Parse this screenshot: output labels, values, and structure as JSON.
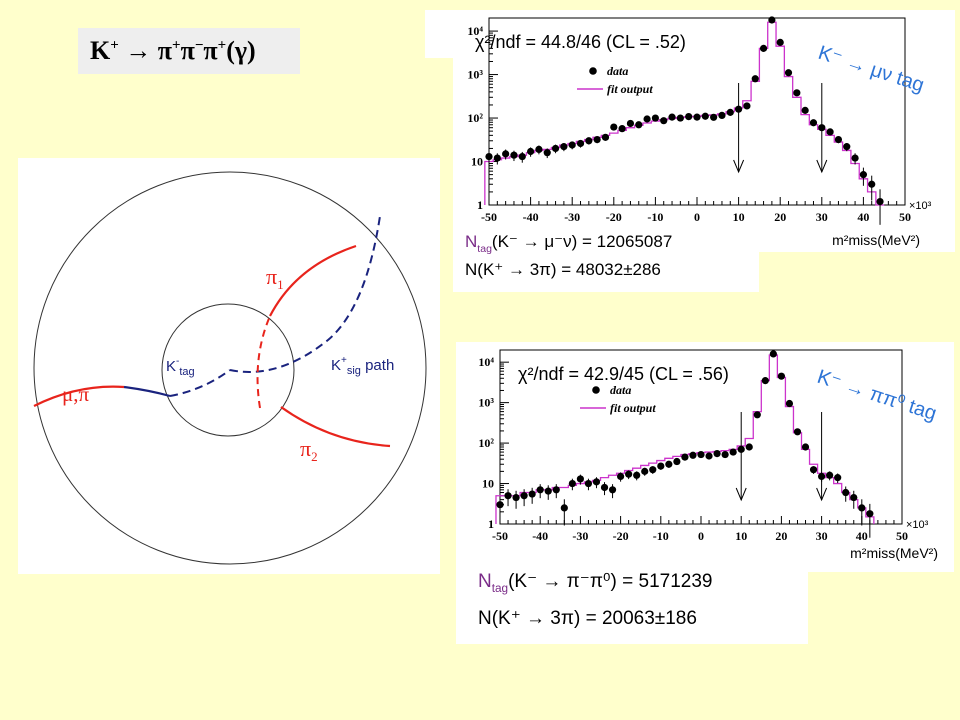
{
  "title": {
    "base": "K",
    "sup1": "+",
    "arrow": "→",
    "pi1": "π",
    "sup2": "+",
    "pi2": "π",
    "sup3": "−",
    "pi3": "π",
    "sup4": "+",
    "tail": "(γ)"
  },
  "diagram": {
    "mu_pi": "μ,π",
    "pi1": "π",
    "pi1_sub": "1",
    "pi2": "π",
    "pi2_sub": "2",
    "ktag": "K",
    "ktag_sup": "-",
    "ktag_sub": "tag",
    "ksig": "K",
    "ksig_sup": "+",
    "ksig_sub": "sig",
    "ksig_path": " path"
  },
  "colors": {
    "background": "#ffffcc",
    "red": "#e8241c",
    "blue": "#1a237e",
    "magenta": "#cc33cc",
    "label_blue": "#2d74d6",
    "label_purple": "#7a2c88"
  },
  "chart_data": [
    {
      "type": "scatter",
      "yscale": "log",
      "xlim": [
        -50,
        50
      ],
      "ylim": [
        1,
        20000
      ],
      "x_ticks": [
        "-50",
        "-40",
        "-30",
        "-20",
        "-10",
        "0",
        "10",
        "20",
        "30",
        "40",
        "50"
      ],
      "x_mult": "×10³",
      "y_ticks": [
        "1",
        "10",
        "10²",
        "10³",
        "10⁴"
      ],
      "xlabel": "m²miss(MeV²)",
      "chi2_text": "χ²/ndf = 44.8/46 (CL = .52)",
      "tag_text": "K⁻ → μν  tag",
      "legend": [
        "data",
        "fit output"
      ],
      "arrows_x": [
        10,
        30
      ],
      "data_x": [
        -50,
        -48,
        -46,
        -44,
        -42,
        -40,
        -38,
        -36,
        -34,
        -32,
        -30,
        -28,
        -26,
        -24,
        -22,
        -20,
        -18,
        -16,
        -14,
        -12,
        -10,
        -8,
        -6,
        -4,
        -2,
        0,
        2,
        4,
        6,
        8,
        10,
        12,
        14,
        16,
        18,
        20,
        22,
        24,
        26,
        28,
        30,
        32,
        34,
        36,
        38,
        40,
        42,
        44
      ],
      "data_y": [
        13,
        12,
        15,
        14,
        13,
        17,
        19,
        16,
        20,
        22,
        24,
        26,
        30,
        32,
        36,
        62,
        57,
        75,
        70,
        95,
        100,
        87,
        105,
        100,
        108,
        105,
        110,
        104,
        115,
        135,
        160,
        190,
        800,
        4000,
        18000,
        5500,
        1100,
        380,
        150,
        78,
        60,
        48,
        32,
        22,
        12,
        5,
        3,
        1.2
      ],
      "fit_y": [
        10,
        11,
        12,
        13,
        14,
        16,
        18,
        19,
        21,
        24,
        26,
        29,
        32,
        36,
        40,
        45,
        52,
        60,
        68,
        77,
        85,
        92,
        98,
        103,
        107,
        110,
        115,
        118,
        125,
        140,
        170,
        250,
        700,
        4000,
        16000,
        4500,
        900,
        300,
        120,
        70,
        55,
        40,
        28,
        18,
        9,
        4,
        2,
        1
      ],
      "ntag_label": "N",
      "ntag_sub": "tag",
      "ntag_expr": "(K⁻ → μ⁻ν) = 12065087",
      "n3pi_label": "N(K⁺ → 3π) = 48032±286"
    },
    {
      "type": "scatter",
      "yscale": "log",
      "xlim": [
        -50,
        50
      ],
      "ylim": [
        1,
        20000
      ],
      "x_ticks": [
        "-50",
        "-40",
        "-30",
        "-20",
        "-10",
        "0",
        "10",
        "20",
        "30",
        "40",
        "50"
      ],
      "x_mult": "×10³",
      "y_ticks": [
        "1",
        "10",
        "10²",
        "10³",
        "10⁴"
      ],
      "xlabel": "m²miss(MeV²)",
      "chi2_text": "χ²/ndf = 42.9/45 (CL = .56)",
      "tag_text": "K⁻ → ππ⁰  tag",
      "legend": [
        "data",
        "fit output"
      ],
      "arrows_x": [
        10,
        30
      ],
      "data_x": [
        -50,
        -48,
        -46,
        -44,
        -42,
        -40,
        -38,
        -36,
        -34,
        -32,
        -30,
        -28,
        -26,
        -24,
        -22,
        -20,
        -18,
        -16,
        -14,
        -12,
        -10,
        -8,
        -6,
        -4,
        -2,
        0,
        2,
        4,
        6,
        8,
        10,
        12,
        14,
        16,
        18,
        20,
        22,
        24,
        26,
        28,
        30,
        32,
        34,
        36,
        38,
        40,
        42
      ],
      "data_y": [
        3,
        5,
        4.5,
        5,
        5.5,
        7,
        6.5,
        7,
        2.5,
        10,
        13,
        10,
        11,
        8,
        7,
        15,
        17,
        16,
        20,
        22,
        27,
        30,
        35,
        45,
        50,
        52,
        48,
        55,
        52,
        60,
        70,
        80,
        500,
        3500,
        16000,
        4500,
        950,
        190,
        80,
        22,
        15,
        16,
        14,
        6,
        4.5,
        2.5,
        1.8
      ],
      "fit_y": [
        5,
        5,
        5,
        6,
        6,
        7,
        7,
        8,
        8,
        9,
        10,
        11,
        12,
        14,
        16,
        18,
        21,
        24,
        28,
        32,
        37,
        42,
        47,
        52,
        55,
        58,
        60,
        62,
        65,
        70,
        85,
        130,
        600,
        3500,
        15000,
        4200,
        800,
        180,
        70,
        30,
        18,
        14,
        10,
        6,
        4,
        2.5,
        1.5
      ],
      "ntag_label": "N",
      "ntag_sub": "tag",
      "ntag_expr": "(K⁻ → π⁻π⁰) = 5171239",
      "n3pi_label": "N(K⁺ → 3π) = 20063±186"
    }
  ]
}
